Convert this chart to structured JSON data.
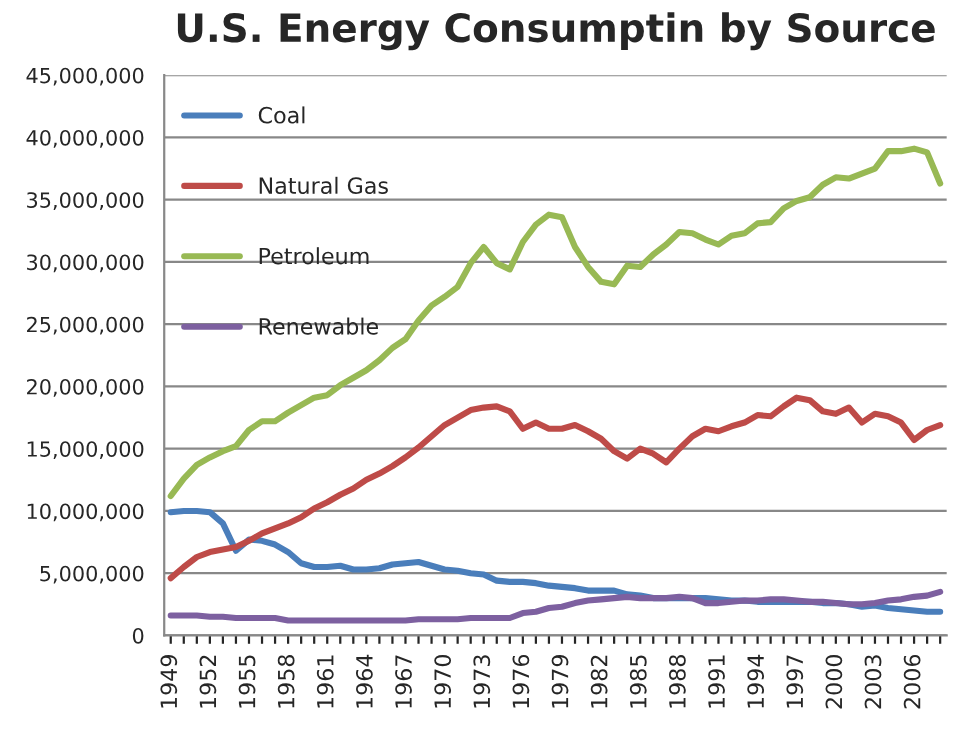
{
  "chart_data": {
    "type": "line",
    "title": "U.S. Energy Consumptin by Source",
    "categories": [
      "1949",
      null,
      null,
      "1952",
      null,
      null,
      "1955",
      null,
      null,
      "1958",
      null,
      null,
      "1961",
      null,
      null,
      "1964",
      null,
      null,
      "1967",
      null,
      null,
      "1970",
      null,
      null,
      "1973",
      null,
      null,
      "1976",
      null,
      null,
      "1979",
      null,
      null,
      "1982",
      null,
      null,
      "1985",
      null,
      null,
      "1988",
      null,
      null,
      "1991",
      null,
      null,
      "1994",
      null,
      null,
      "1997",
      null,
      null,
      "2000",
      null,
      null,
      "2003",
      null,
      null,
      "2006",
      null,
      null
    ],
    "series": [
      {
        "name": "Coal",
        "color": "#4a7ebb",
        "values": [
          9900000,
          10000000,
          10000000,
          9900000,
          9000000,
          6800000,
          7700000,
          7600000,
          7300000,
          6700000,
          5800000,
          5500000,
          5500000,
          5600000,
          5300000,
          5300000,
          5400000,
          5700000,
          5800000,
          5900000,
          5600000,
          5300000,
          5200000,
          5000000,
          4900000,
          4400000,
          4300000,
          4300000,
          4200000,
          4000000,
          3900000,
          3800000,
          3600000,
          3600000,
          3600000,
          3300000,
          3200000,
          3000000,
          3000000,
          3000000,
          3000000,
          3000000,
          2900000,
          2800000,
          2800000,
          2700000,
          2700000,
          2700000,
          2700000,
          2700000,
          2600000,
          2600000,
          2500000,
          2300000,
          2400000,
          2200000,
          2100000,
          2000000,
          1900000,
          1900000
        ]
      },
      {
        "name": "Natural Gas",
        "color": "#be4b48",
        "values": [
          4600000,
          5500000,
          6300000,
          6700000,
          6900000,
          7100000,
          7600000,
          8200000,
          8600000,
          9000000,
          9500000,
          10200000,
          10700000,
          11300000,
          11800000,
          12500000,
          13000000,
          13600000,
          14300000,
          15100000,
          16000000,
          16900000,
          17500000,
          18100000,
          18300000,
          18400000,
          18000000,
          16600000,
          17100000,
          16600000,
          16600000,
          16900000,
          16400000,
          15800000,
          14800000,
          14200000,
          15000000,
          14600000,
          13900000,
          15000000,
          16000000,
          16600000,
          16400000,
          16800000,
          17100000,
          17700000,
          17600000,
          18400000,
          19100000,
          18900000,
          18000000,
          17800000,
          18300000,
          17100000,
          17800000,
          17600000,
          17100000,
          15700000,
          16500000,
          16900000
        ]
      },
      {
        "name": "Petroleum",
        "color": "#98b954",
        "values": [
          11200000,
          12600000,
          13700000,
          14300000,
          14800000,
          15200000,
          16500000,
          17200000,
          17200000,
          17900000,
          18500000,
          19100000,
          19300000,
          20100000,
          20700000,
          21300000,
          22100000,
          23100000,
          23800000,
          25300000,
          26500000,
          27200000,
          28000000,
          29900000,
          31200000,
          29900000,
          29400000,
          31600000,
          33000000,
          33800000,
          33600000,
          31200000,
          29600000,
          28400000,
          28200000,
          29700000,
          29600000,
          30600000,
          31400000,
          32400000,
          32300000,
          31800000,
          31400000,
          32100000,
          32300000,
          33100000,
          33200000,
          34300000,
          34900000,
          35200000,
          36200000,
          36800000,
          36700000,
          37100000,
          37500000,
          38900000,
          38900000,
          39100000,
          38800000,
          36300000
        ]
      },
      {
        "name": "Renewable",
        "color": "#7d60a0",
        "values": [
          1600000,
          1600000,
          1600000,
          1500000,
          1500000,
          1400000,
          1400000,
          1400000,
          1400000,
          1200000,
          1200000,
          1200000,
          1200000,
          1200000,
          1200000,
          1200000,
          1200000,
          1200000,
          1200000,
          1300000,
          1300000,
          1300000,
          1300000,
          1400000,
          1400000,
          1400000,
          1400000,
          1800000,
          1900000,
          2200000,
          2300000,
          2600000,
          2800000,
          2900000,
          3000000,
          3100000,
          3000000,
          3000000,
          3000000,
          3100000,
          3000000,
          2600000,
          2600000,
          2700000,
          2800000,
          2800000,
          2900000,
          2900000,
          2800000,
          2700000,
          2700000,
          2600000,
          2500000,
          2500000,
          2600000,
          2800000,
          2900000,
          3100000,
          3200000,
          3500000
        ]
      }
    ],
    "ylim": [
      0,
      45000000
    ],
    "yticks": [
      {
        "value": 0,
        "label": "0"
      },
      {
        "value": 5000000,
        "label": "5,000,000"
      },
      {
        "value": 10000000,
        "label": "10,000,000"
      },
      {
        "value": 15000000,
        "label": "15,000,000"
      },
      {
        "value": 20000000,
        "label": "20,000,000"
      },
      {
        "value": 25000000,
        "label": "25,000,000"
      },
      {
        "value": 30000000,
        "label": "30,000,000"
      },
      {
        "value": 35000000,
        "label": "35,000,000"
      },
      {
        "value": 40000000,
        "label": "40,000,000"
      },
      {
        "value": 45000000,
        "label": "45,000,000"
      }
    ],
    "grid": "y",
    "legend": "top left",
    "marker": "none",
    "line_style": "solid"
  }
}
